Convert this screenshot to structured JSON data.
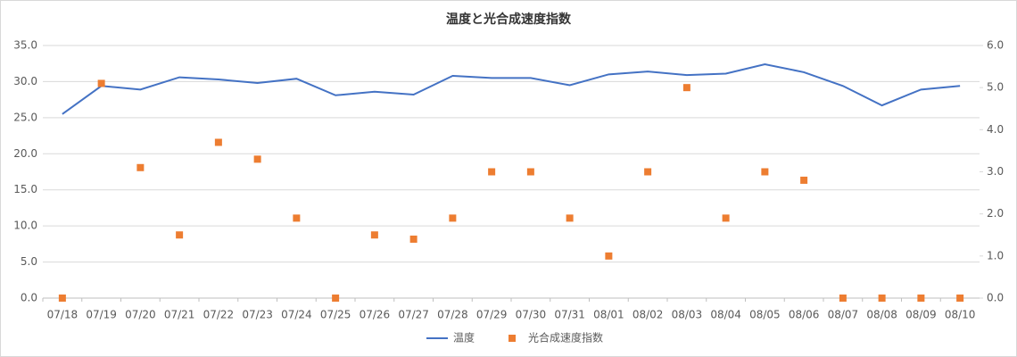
{
  "chart_data": {
    "type": "line",
    "title": "温度と光合成速度指数",
    "categories": [
      "07/18",
      "07/19",
      "07/20",
      "07/21",
      "07/22",
      "07/23",
      "07/24",
      "07/25",
      "07/26",
      "07/27",
      "07/28",
      "07/29",
      "07/30",
      "07/31",
      "08/01",
      "08/02",
      "08/03",
      "08/04",
      "08/05",
      "08/06",
      "08/07",
      "08/08",
      "08/09",
      "08/10"
    ],
    "series": [
      {
        "name": "温度",
        "color": "#4472c4",
        "style": "line",
        "axis": "y",
        "values": [
          25.5,
          29.4,
          28.9,
          30.6,
          30.3,
          29.8,
          30.4,
          28.1,
          28.6,
          28.2,
          30.8,
          30.5,
          30.5,
          29.5,
          31.0,
          31.4,
          30.9,
          31.1,
          32.4,
          31.3,
          29.4,
          26.7,
          28.9,
          29.4
        ]
      },
      {
        "name": "光合成速度指数",
        "color": "#ed7d31",
        "style": "markers",
        "axis": "y2",
        "values": [
          0,
          5.1,
          3.1,
          1.5,
          3.7,
          3.3,
          1.9,
          0,
          1.5,
          1.4,
          1.9,
          3.0,
          3.0,
          1.9,
          1.0,
          3.0,
          5.0,
          1.9,
          3.0,
          2.8,
          0,
          0,
          0,
          0
        ]
      }
    ],
    "ylim": [
      0,
      35
    ],
    "yticks": [
      {
        "value": 0,
        "label": "0.0"
      },
      {
        "value": 5,
        "label": "5.0"
      },
      {
        "value": 10,
        "label": "10.0"
      },
      {
        "value": 15,
        "label": "15.0"
      },
      {
        "value": 20,
        "label": "20.0"
      },
      {
        "value": 25,
        "label": "25.0"
      },
      {
        "value": 30,
        "label": "30.0"
      },
      {
        "value": 35,
        "label": "35.0"
      }
    ],
    "y2lim": [
      0,
      6
    ],
    "y2ticks": [
      {
        "value": 0,
        "label": "0.0"
      },
      {
        "value": 1,
        "label": "1.0"
      },
      {
        "value": 2,
        "label": "2.0"
      },
      {
        "value": 3,
        "label": "3.0"
      },
      {
        "value": 4,
        "label": "4.0"
      },
      {
        "value": 5,
        "label": "5.0"
      },
      {
        "value": 6,
        "label": "6.0"
      }
    ],
    "grid": true,
    "legend": "bottom"
  }
}
